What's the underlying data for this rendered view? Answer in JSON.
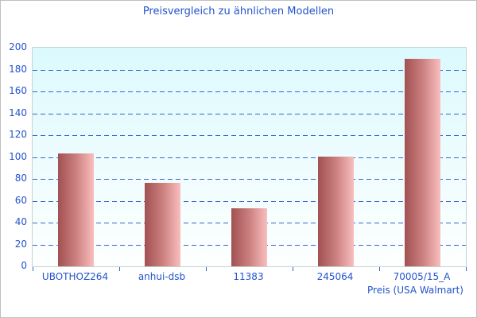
{
  "chart_data": {
    "type": "bar",
    "title": "Preisvergleich zu ähnlichen Modellen",
    "categories": [
      "UBOTHOZ264",
      "anhui-dsb",
      "11383",
      "245064",
      "70005/15_A"
    ],
    "values": [
      103,
      76,
      53,
      100,
      190
    ],
    "xlabel": "Preis (USA Walmart)",
    "ylabel": "",
    "ylim": [
      0,
      200
    ],
    "ytick_step": 20,
    "grid": true,
    "gridline_style": "dashed",
    "legend": "none",
    "colors": {
      "title_text": "#2253cc",
      "axis_text": "#2253cc",
      "gridline": "#3366cc",
      "bar_gradient_left": "#a15151",
      "bar_gradient_right": "#f9bebe",
      "plot_background_top": "#dbfafe",
      "plot_background_bottom": "#fdfffe",
      "plot_border": "#c6d2d2",
      "frame_border": "#c0c0c0"
    }
  }
}
